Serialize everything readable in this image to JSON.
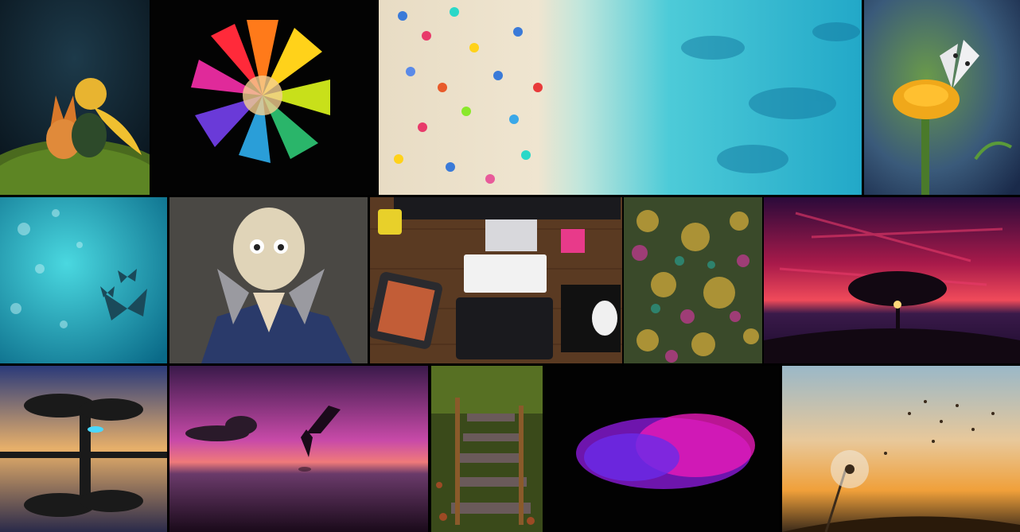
{
  "gallery": {
    "tiles": [
      {
        "subject": "little-prince-fox-on-hill"
      },
      {
        "subject": "rainbow-color-powder-explosion"
      },
      {
        "subject": "aerial-beach-umbrellas-turquoise-sea"
      },
      {
        "subject": "butterfly-on-orange-marigold"
      },
      {
        "subject": "teal-bokeh-with-butterflies"
      },
      {
        "subject": "bald-cartoon-character-praying-hands"
      },
      {
        "subject": "designer-desk-monitor-tablet-keyboard"
      },
      {
        "subject": "ornate-gold-floral-texture"
      },
      {
        "subject": "tree-silhouette-red-sunset-sea"
      },
      {
        "subject": "twisted-tree-reflection-lake"
      },
      {
        "subject": "winged-figure-purple-sunset"
      },
      {
        "subject": "wooden-stairs-forest-autumn"
      },
      {
        "subject": "purple-pink-powder-cloud"
      },
      {
        "subject": "dandelion-seeds-sunset"
      }
    ]
  }
}
